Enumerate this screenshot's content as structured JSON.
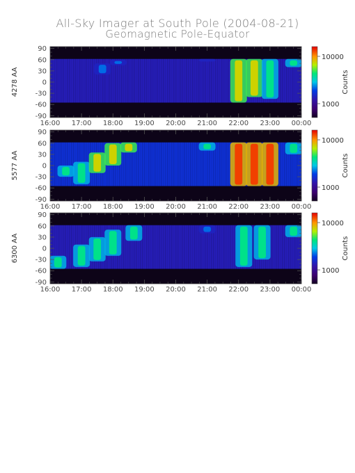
{
  "title": "All-Sky Imager at South Pole (2004-08-21)",
  "subtitle": "Geomagnetic Pole-Equator",
  "chart_data": {
    "type": "heatmap",
    "title": "All-Sky Imager at South Pole (2004-08-21)",
    "subtitle": "Geomagnetic Pole-Equator",
    "x_ticks": [
      "16:00",
      "17:00",
      "18:00",
      "19:00",
      "20:00",
      "21:00",
      "22:00",
      "23:00",
      "00:00"
    ],
    "xlim": [
      "16:00",
      "00:00"
    ],
    "y_ticks": [
      90,
      60,
      30,
      0,
      -30,
      -60,
      -90
    ],
    "ylim": [
      -95,
      95
    ],
    "colorbar_label": "Counts",
    "colorbar_scale": "log",
    "colormap": "rainbow",
    "panels": [
      {
        "ylabel": "4278 AA",
        "colorbar_ticks": [
          "10000",
          "1000"
        ],
        "data_valid_range": [
          -55,
          62
        ],
        "background_level": "low",
        "features": [
          {
            "x": "17:40",
            "ymin": 20,
            "ymax": 50,
            "intensity": "low"
          },
          {
            "x": "18:10",
            "ymin": 45,
            "ymax": 60,
            "intensity": "low"
          },
          {
            "x": "21:00",
            "ymin": 55,
            "ymax": 62,
            "intensity": "low"
          },
          {
            "x": "22:00",
            "ymin": -55,
            "ymax": 62,
            "intensity": "high"
          },
          {
            "x": "22:30",
            "ymin": -40,
            "ymax": 62,
            "intensity": "high"
          },
          {
            "x": "23:00",
            "ymin": -45,
            "ymax": 62,
            "intensity": "medium"
          },
          {
            "x": "23:45",
            "ymin": 40,
            "ymax": 62,
            "intensity": "medium"
          }
        ]
      },
      {
        "ylabel": "5577 AA",
        "colorbar_ticks": [
          "10000",
          "1000"
        ],
        "data_valid_range": [
          -55,
          62
        ],
        "background_level": "medium",
        "features": [
          {
            "x": "16:30",
            "ymin": -30,
            "ymax": 0,
            "intensity": "medium"
          },
          {
            "x": "17:00",
            "ymin": -50,
            "ymax": 10,
            "intensity": "medium"
          },
          {
            "x": "17:30",
            "ymin": -20,
            "ymax": 35,
            "intensity": "high"
          },
          {
            "x": "18:00",
            "ymin": 0,
            "ymax": 60,
            "intensity": "high"
          },
          {
            "x": "18:30",
            "ymin": 35,
            "ymax": 62,
            "intensity": "high"
          },
          {
            "x": "21:00",
            "ymin": 40,
            "ymax": 62,
            "intensity": "medium"
          },
          {
            "x": "22:00",
            "ymin": -55,
            "ymax": 62,
            "intensity": "very high"
          },
          {
            "x": "22:30",
            "ymin": -55,
            "ymax": 62,
            "intensity": "very high"
          },
          {
            "x": "23:00",
            "ymin": -55,
            "ymax": 62,
            "intensity": "very high"
          },
          {
            "x": "23:45",
            "ymin": 30,
            "ymax": 62,
            "intensity": "medium"
          }
        ]
      },
      {
        "ylabel": "6300 AA",
        "colorbar_ticks": [
          "10000",
          "1000"
        ],
        "data_valid_range": [
          -55,
          62
        ],
        "background_level": "low",
        "features": [
          {
            "x": "16:15",
            "ymin": -55,
            "ymax": -20,
            "intensity": "medium"
          },
          {
            "x": "17:00",
            "ymin": -50,
            "ymax": 10,
            "intensity": "medium"
          },
          {
            "x": "17:30",
            "ymin": -35,
            "ymax": 30,
            "intensity": "medium"
          },
          {
            "x": "18:00",
            "ymin": -20,
            "ymax": 50,
            "intensity": "medium"
          },
          {
            "x": "18:40",
            "ymin": 20,
            "ymax": 62,
            "intensity": "medium"
          },
          {
            "x": "21:00",
            "ymin": 40,
            "ymax": 62,
            "intensity": "low"
          },
          {
            "x": "22:10",
            "ymin": -50,
            "ymax": 62,
            "intensity": "medium"
          },
          {
            "x": "22:45",
            "ymin": -30,
            "ymax": 62,
            "intensity": "medium"
          },
          {
            "x": "23:45",
            "ymin": 30,
            "ymax": 62,
            "intensity": "medium"
          }
        ]
      }
    ]
  }
}
